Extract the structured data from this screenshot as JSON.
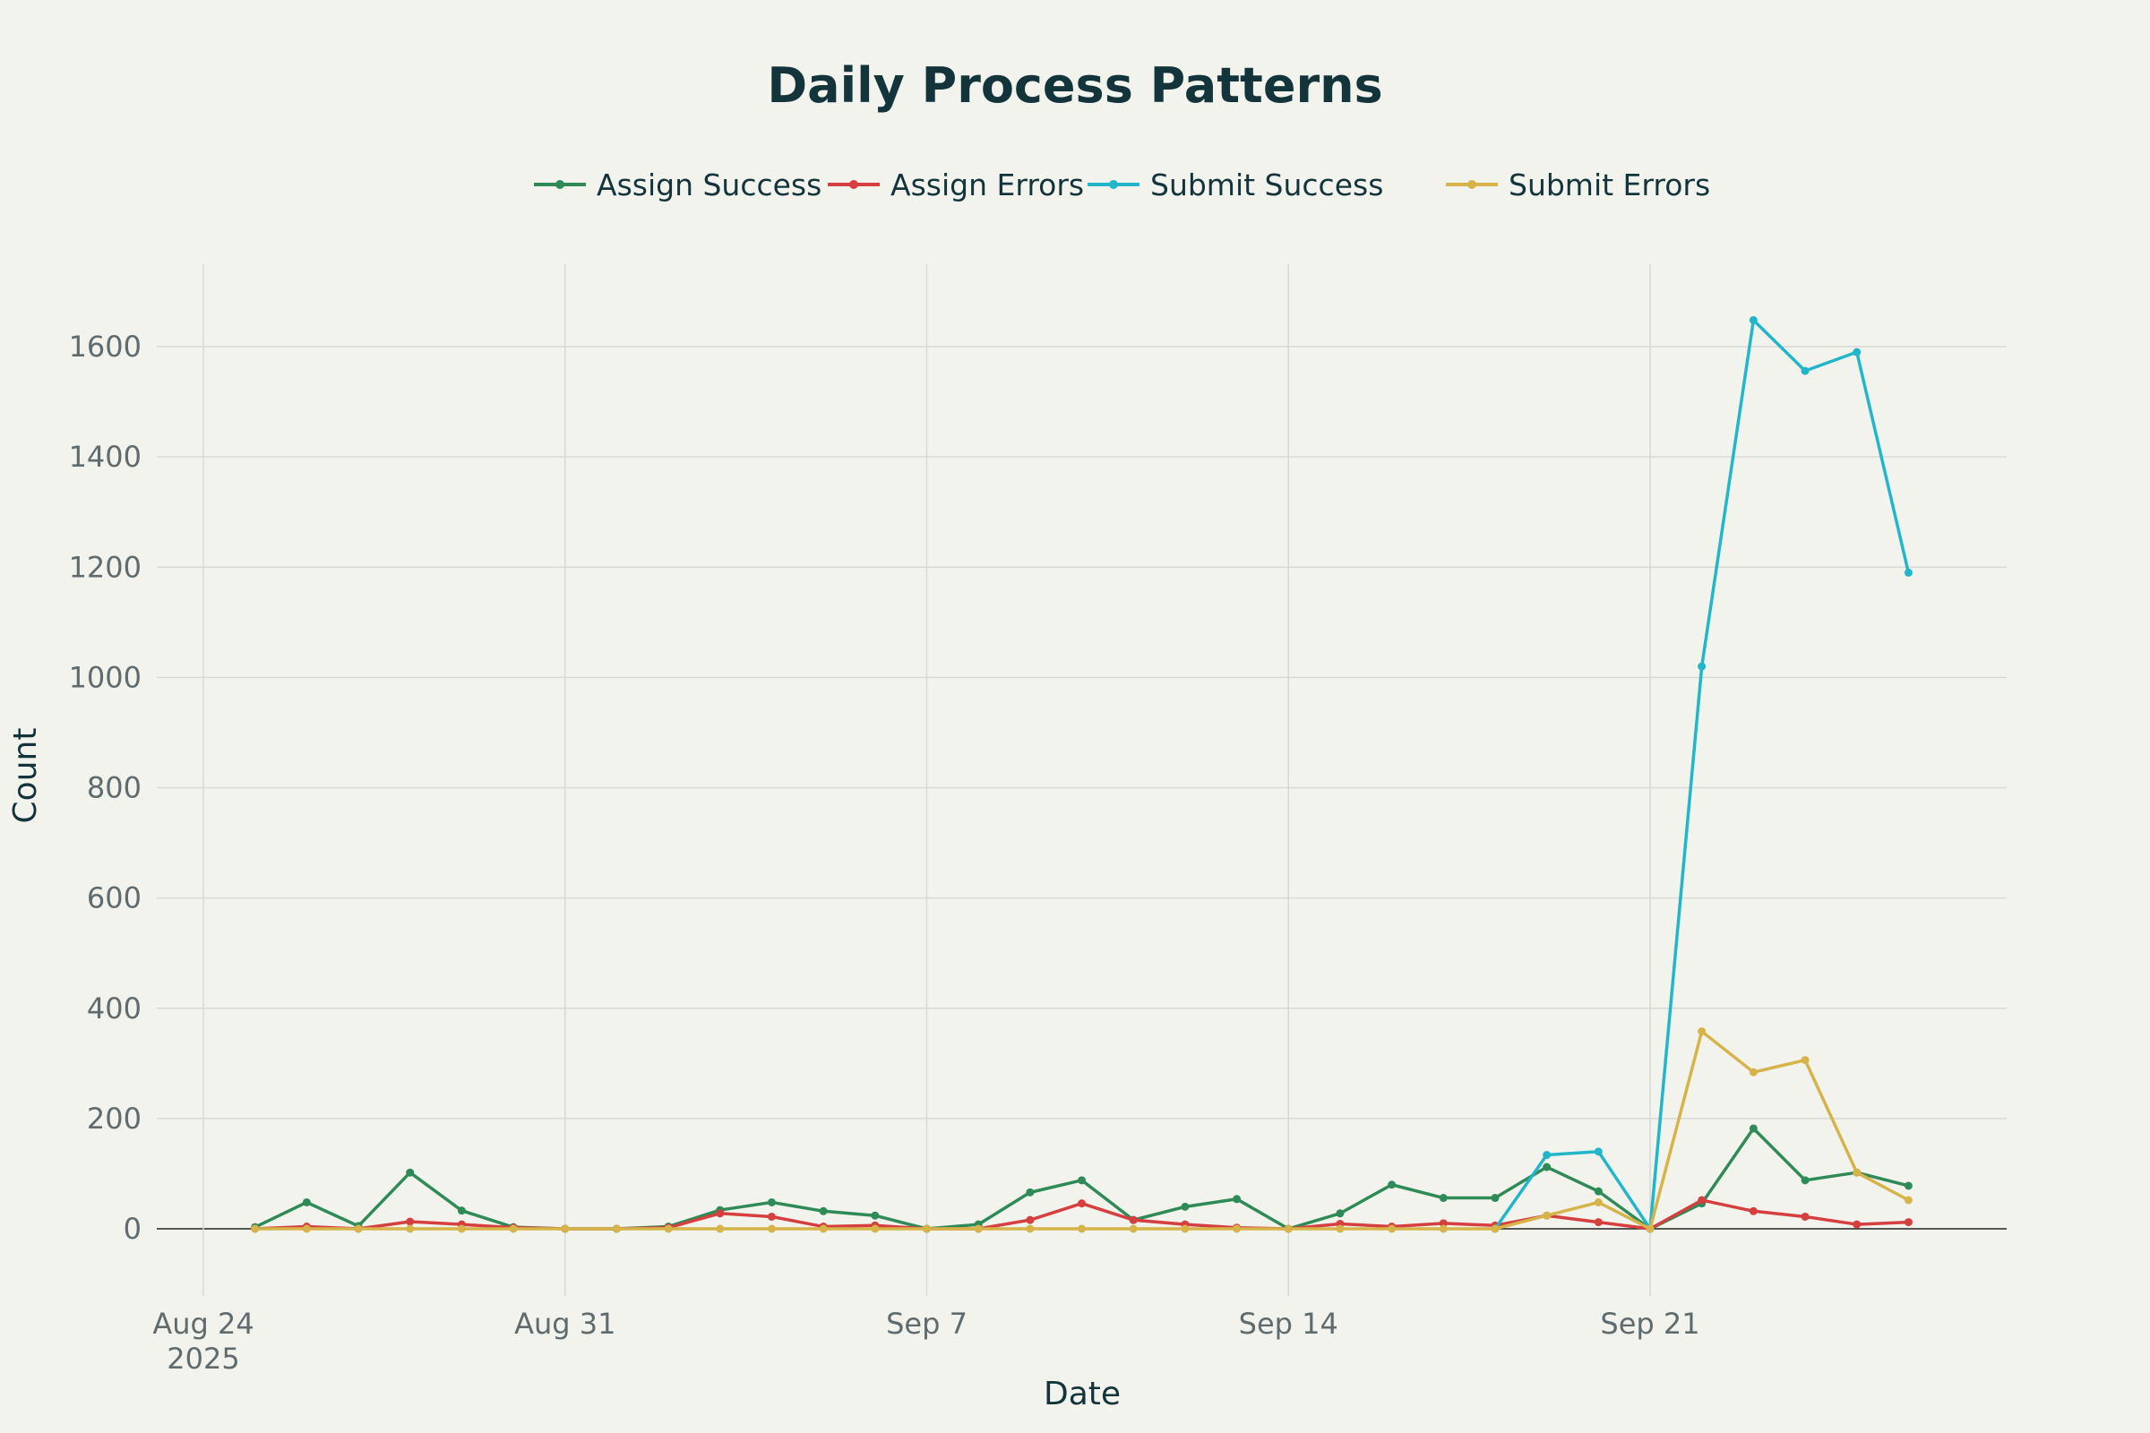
{
  "chart_data": {
    "type": "line",
    "title": "Daily Process Patterns",
    "xlabel": "Date",
    "ylabel": "Count",
    "ylim": [
      -100,
      1750
    ],
    "yticks": [
      0,
      200,
      400,
      600,
      800,
      1000,
      1200,
      1400,
      1600
    ],
    "xlim": [
      "2025-08-24",
      "2025-09-28"
    ],
    "xticks": [
      {
        "date": "2025-08-24",
        "label": "Aug 24",
        "sublabel": "2025"
      },
      {
        "date": "2025-08-31",
        "label": "Aug 31",
        "sublabel": ""
      },
      {
        "date": "2025-09-07",
        "label": "Sep 7",
        "sublabel": ""
      },
      {
        "date": "2025-09-14",
        "label": "Sep 14",
        "sublabel": ""
      },
      {
        "date": "2025-09-21",
        "label": "Sep 21",
        "sublabel": ""
      }
    ],
    "grid": true,
    "legend_position": "top-center",
    "x": [
      "2025-08-25",
      "2025-08-26",
      "2025-08-27",
      "2025-08-28",
      "2025-08-29",
      "2025-08-30",
      "2025-08-31",
      "2025-09-01",
      "2025-09-02",
      "2025-09-03",
      "2025-09-04",
      "2025-09-05",
      "2025-09-06",
      "2025-09-07",
      "2025-09-08",
      "2025-09-09",
      "2025-09-10",
      "2025-09-11",
      "2025-09-12",
      "2025-09-13",
      "2025-09-14",
      "2025-09-15",
      "2025-09-16",
      "2025-09-17",
      "2025-09-18",
      "2025-09-19",
      "2025-09-20",
      "2025-09-21",
      "2025-09-22",
      "2025-09-23",
      "2025-09-24",
      "2025-09-25",
      "2025-09-26"
    ],
    "series": [
      {
        "name": "Assign Success",
        "color": "#2e8b57",
        "values": [
          3,
          48,
          5,
          102,
          33,
          3,
          0,
          0,
          4,
          34,
          48,
          32,
          24,
          0,
          8,
          66,
          88,
          16,
          40,
          54,
          0,
          28,
          80,
          56,
          56,
          112,
          68,
          0,
          46,
          182,
          88,
          102,
          78
        ]
      },
      {
        "name": "Assign Errors",
        "color": "#d63f3f",
        "values": [
          0,
          4,
          0,
          13,
          8,
          2,
          0,
          0,
          2,
          28,
          22,
          4,
          6,
          0,
          0,
          16,
          46,
          16,
          8,
          2,
          0,
          9,
          4,
          10,
          6,
          24,
          12,
          0,
          52,
          32,
          22,
          8,
          12
        ]
      },
      {
        "name": "Submit Success",
        "color": "#21b6c9",
        "values": [
          null,
          null,
          null,
          null,
          null,
          null,
          null,
          null,
          null,
          null,
          null,
          null,
          null,
          null,
          null,
          null,
          null,
          null,
          null,
          null,
          null,
          null,
          null,
          null,
          0,
          134,
          140,
          0,
          1020,
          1648,
          1556,
          1590,
          1190
        ]
      },
      {
        "name": "Submit Errors",
        "color": "#d6b44a",
        "values": [
          0,
          0,
          0,
          0,
          0,
          0,
          0,
          0,
          0,
          0,
          0,
          0,
          0,
          0,
          0,
          0,
          0,
          0,
          0,
          0,
          0,
          0,
          0,
          0,
          0,
          24,
          48,
          0,
          358,
          284,
          306,
          102,
          52
        ]
      }
    ]
  }
}
